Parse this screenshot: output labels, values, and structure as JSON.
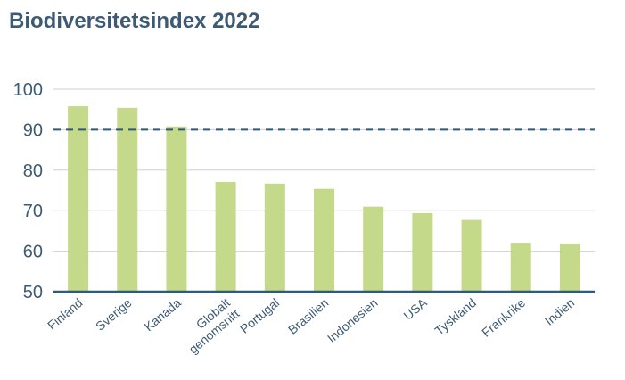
{
  "chart_data": {
    "type": "bar",
    "title": "Biodiversitetsindex 2022",
    "categories": [
      "Finland",
      "Sverige",
      "Kanada",
      "Globalt genomsnitt",
      "Portugal",
      "Brasilien",
      "Indonesien",
      "USA",
      "Tyskland",
      "Frankrike",
      "Indien"
    ],
    "category_lines": [
      [
        "Finland"
      ],
      [
        "Sverige"
      ],
      [
        "Kanada"
      ],
      [
        "Globalt",
        "genomsnitt"
      ],
      [
        "Portugal"
      ],
      [
        "Brasilien"
      ],
      [
        "Indonesien"
      ],
      [
        "USA"
      ],
      [
        "Tyskland"
      ],
      [
        "Frankrike"
      ],
      [
        "Indien"
      ]
    ],
    "values": [
      95.8,
      95.4,
      90.8,
      77.1,
      76.7,
      75.4,
      71.0,
      69.4,
      67.7,
      62.1,
      61.9
    ],
    "ylim": [
      50,
      100
    ],
    "yticks": [
      50,
      60,
      70,
      80,
      90,
      100
    ],
    "reference_line": 90,
    "grid": true,
    "xlabel": "",
    "ylabel": "",
    "colors": {
      "bar": "#c5d98a",
      "title": "#3d5a75",
      "axis_text": "#3d5a75",
      "grid": "#cfcfcf",
      "baseline": "#2f5a78",
      "reference_line": "#2f5a78"
    }
  }
}
